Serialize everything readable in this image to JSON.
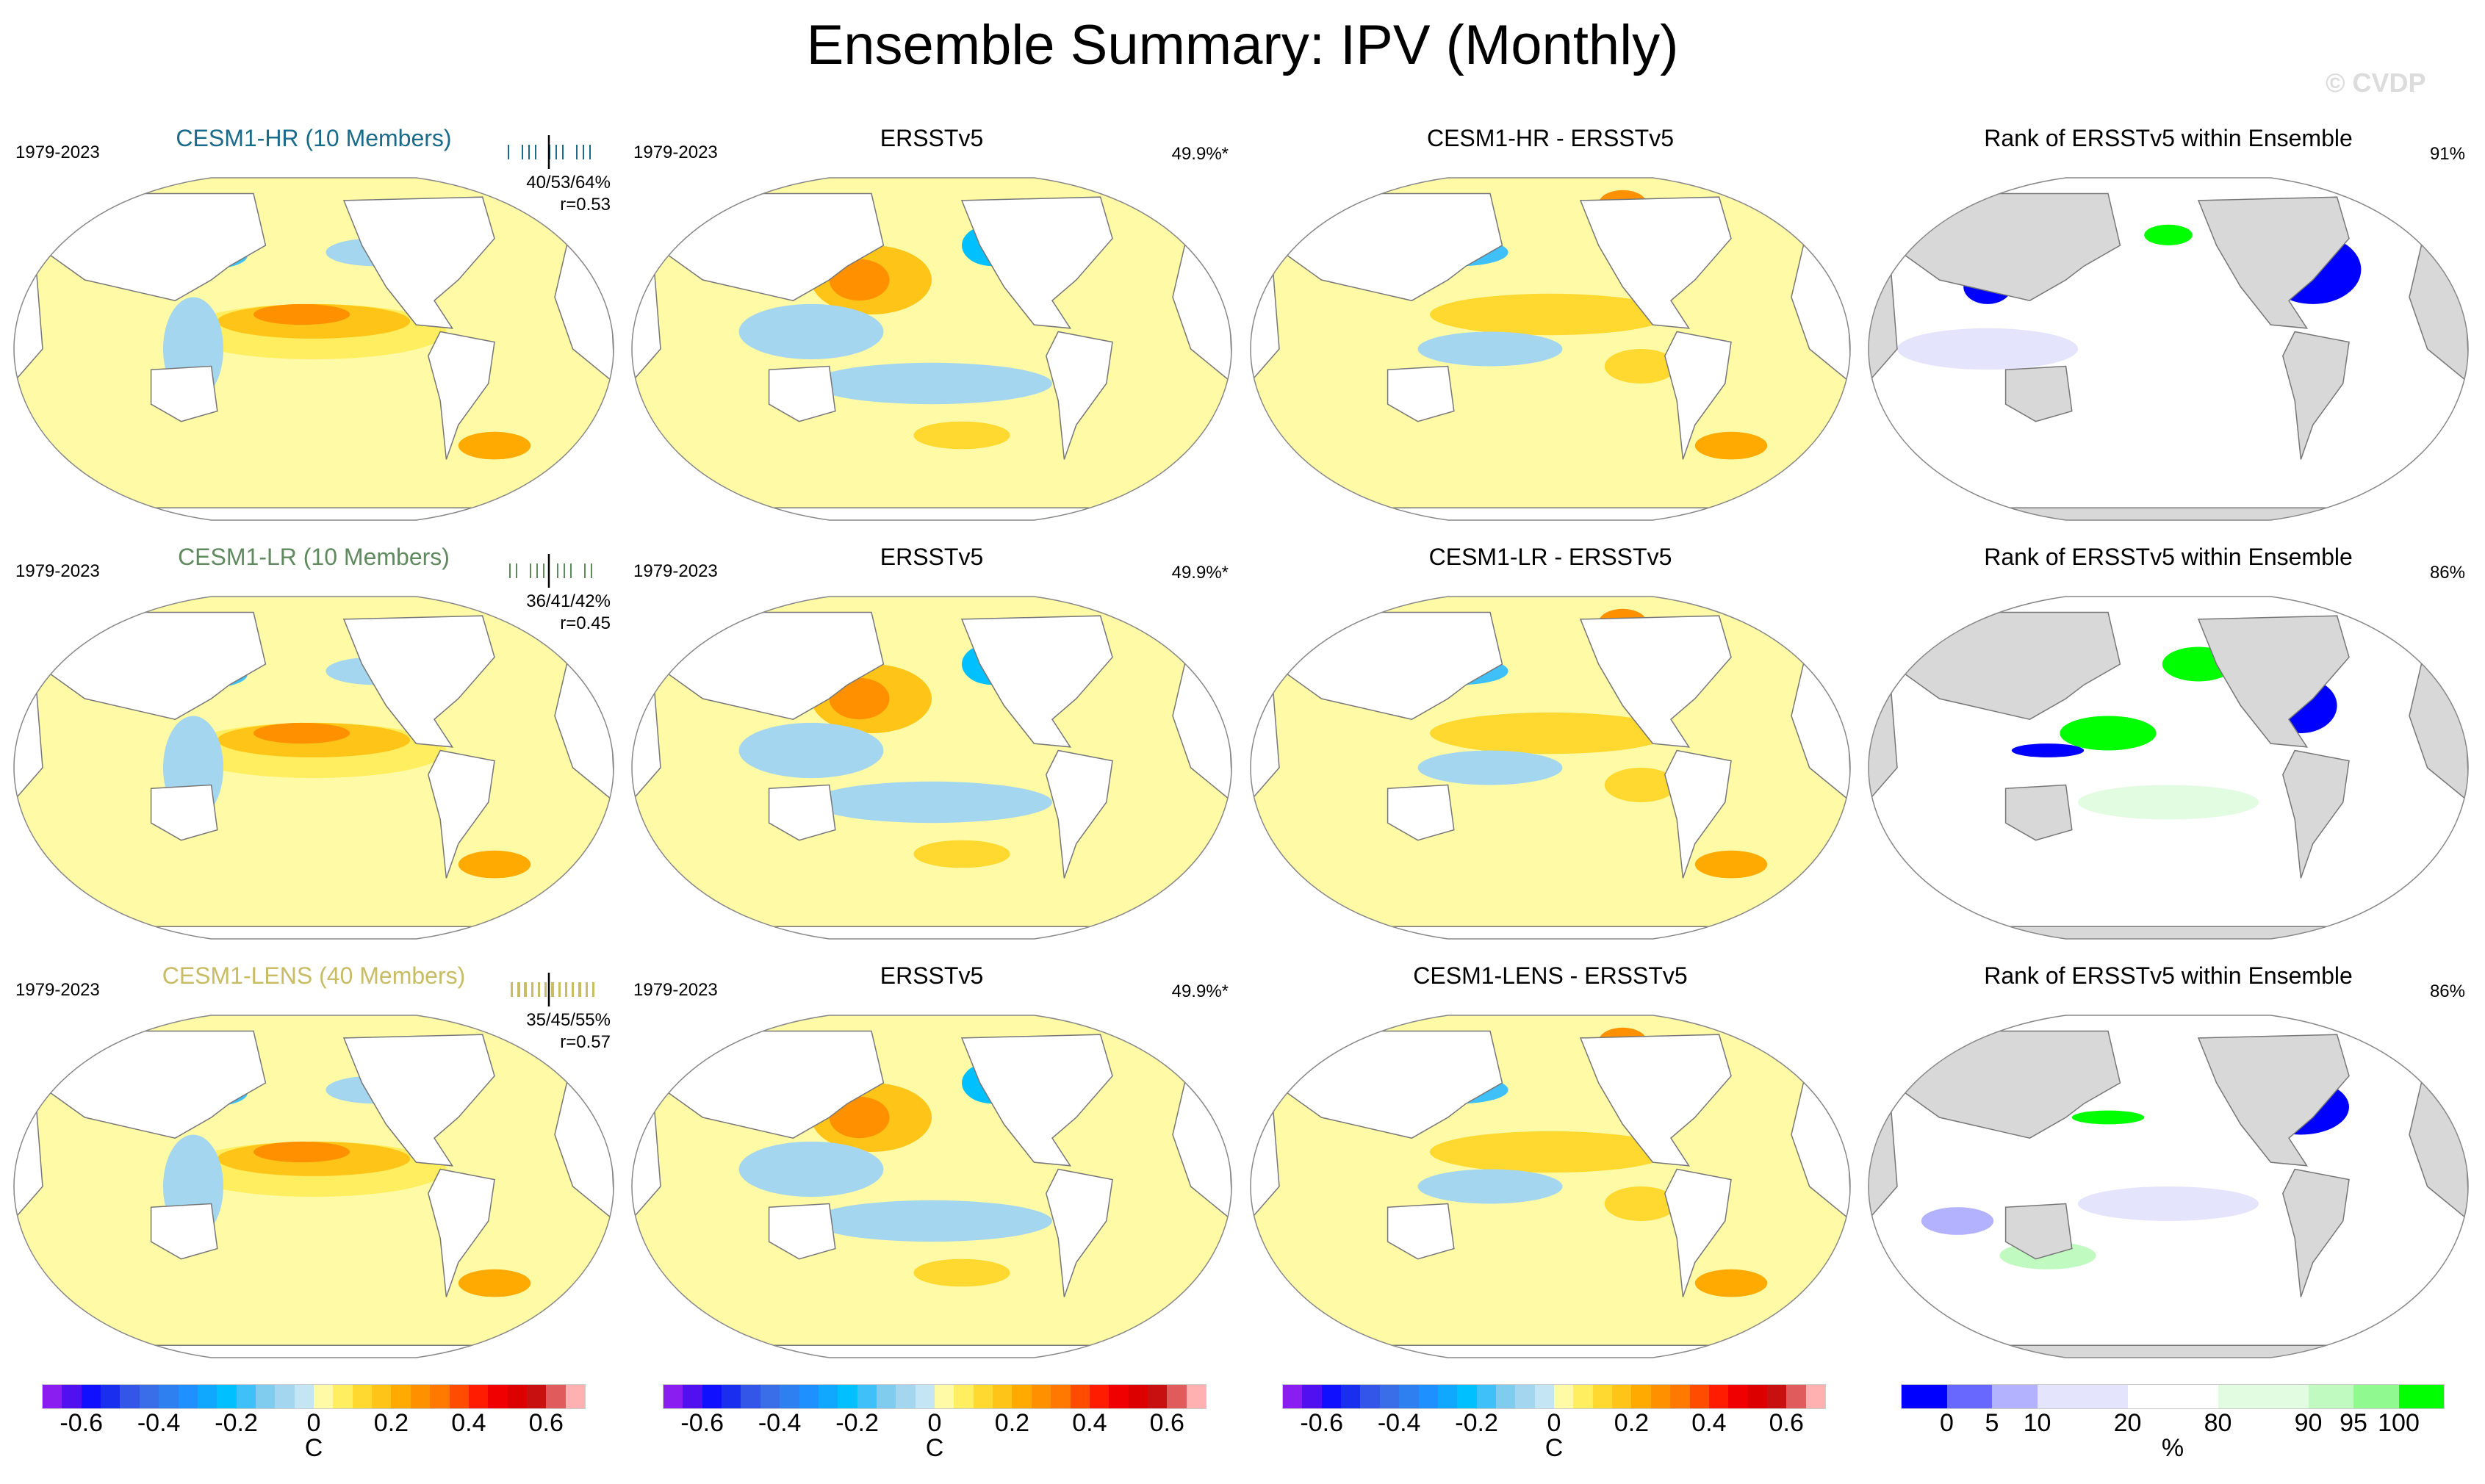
{
  "title": "Ensemble Summary: IPV (Monthly)",
  "watermark": "© CVDP",
  "rows": [
    {
      "model": "CESM1-HR (10 Members)",
      "model_color": "#1a6b8a",
      "period": "1979-2023",
      "stats": "40/53/64%",
      "r": "r=0.53",
      "obs_title": "ERSSTv5",
      "obs_period": "1979-2023",
      "obs_pct": "49.9%*",
      "diff_title": "CESM1-HR - ERSSTv5",
      "rank_title": "Rank of ERSSTv5 within Ensemble",
      "rank_pct": "91%"
    },
    {
      "model": "CESM1-LR (10 Members)",
      "model_color": "#5e8a5e",
      "period": "1979-2023",
      "stats": "36/41/42%",
      "r": "r=0.45",
      "obs_title": "ERSSTv5",
      "obs_period": "1979-2023",
      "obs_pct": "49.9%*",
      "diff_title": "CESM1-LR - ERSSTv5",
      "rank_title": "Rank of ERSSTv5 within Ensemble",
      "rank_pct": "86%"
    },
    {
      "model": "CESM1-LENS (40 Members)",
      "model_color": "#c8bc64",
      "period": "1979-2023",
      "stats": "35/45/55%",
      "r": "r=0.57",
      "obs_title": "ERSSTv5",
      "obs_period": "1979-2023",
      "obs_pct": "49.9%*",
      "diff_title": "CESM1-LENS - ERSSTv5",
      "rank_title": "Rank of ERSSTv5 within Ensemble",
      "rank_pct": "86%"
    }
  ],
  "chart_data": [
    {
      "type": "heatmap",
      "role": "colorbar",
      "unit": "C",
      "tick_labels": [
        "-0.6",
        "-0.4",
        "-0.2",
        "0",
        "0.2",
        "0.4",
        "0.6"
      ],
      "colors": [
        "#8a1ef0",
        "#5010f0",
        "#1010ff",
        "#1a2ef0",
        "#3355e8",
        "#3a6ee8",
        "#2e80f0",
        "#1e90ff",
        "#10a8ff",
        "#00c0ff",
        "#40c0f8",
        "#80ccee",
        "#a4d6f0",
        "#c4e6f4",
        "#fffaa6",
        "#ffee60",
        "#ffd830",
        "#ffc418",
        "#ffaa00",
        "#ff9000",
        "#ff7800",
        "#ff4c00",
        "#ff1c00",
        "#f00000",
        "#dc0000",
        "#c81010",
        "#e05c5c",
        "#ffb0b0"
      ]
    },
    {
      "type": "heatmap",
      "role": "rank-colorbar",
      "unit": "%",
      "tick_labels": [
        "0",
        "5",
        "10",
        "20",
        "80",
        "90",
        "95",
        "100"
      ],
      "colors": [
        "#0000ff",
        "#6868ff",
        "#b2b2ff",
        "#e4e4fc",
        "#ffffff",
        "#e2fce2",
        "#c0fac0",
        "#90fa90",
        "#00ff00"
      ]
    }
  ]
}
